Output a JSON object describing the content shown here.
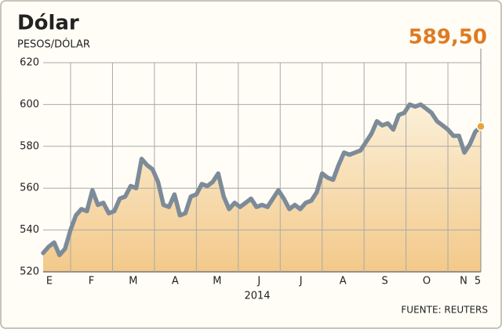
{
  "chart_data": {
    "type": "line",
    "title": "Dólar",
    "subtitle": "PESOS/DÓLAR",
    "annotation": "589,50",
    "source": "FUENTE: REUTERS",
    "xlabel": "2014",
    "xlabels": [
      "E",
      "F",
      "M",
      "A",
      "M",
      "J",
      "J",
      "A",
      "S",
      "O",
      "N",
      "5"
    ],
    "series": [
      {
        "name": "Dólar",
        "color": "#7d8b99",
        "values": [
          529,
          532,
          534,
          528,
          531,
          540,
          547,
          550,
          549,
          559,
          552,
          553,
          548,
          549,
          555,
          556,
          561,
          560,
          574,
          571,
          569,
          563,
          552,
          551,
          557,
          547,
          548,
          556,
          557,
          562,
          561,
          563,
          567,
          556,
          550,
          553,
          551,
          553,
          555,
          551,
          552,
          551,
          555,
          559,
          555,
          550,
          552,
          550,
          553,
          554,
          558,
          567,
          565,
          564,
          571,
          577,
          576,
          577,
          578,
          582,
          586,
          592,
          590,
          591,
          588,
          595,
          596,
          600,
          599,
          600,
          598,
          596,
          592,
          590,
          588,
          585,
          585,
          577,
          581,
          587,
          589.5
        ]
      }
    ],
    "ylim": [
      520,
      620
    ],
    "yticks": [
      520,
      540,
      560,
      580,
      600,
      620
    ],
    "grid": true,
    "marker_color": "#e8a33a",
    "annotation_color": "#e07b22"
  }
}
